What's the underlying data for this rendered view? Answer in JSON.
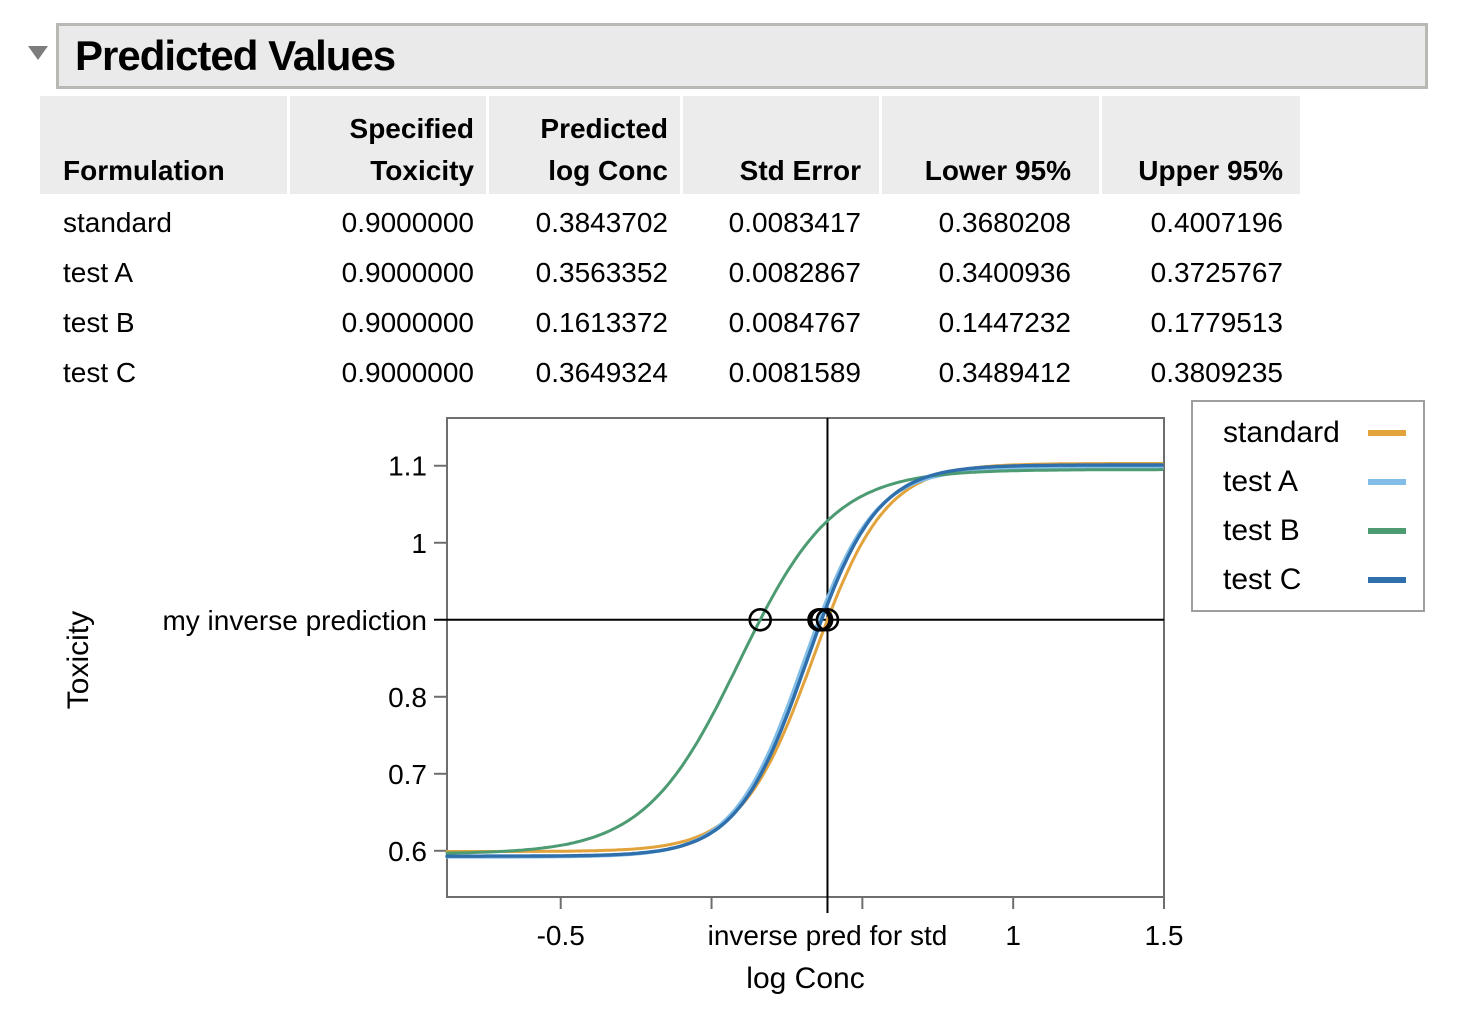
{
  "header": {
    "title": "Predicted Values"
  },
  "table": {
    "columns": [
      {
        "line1": "",
        "line2": "Formulation"
      },
      {
        "line1": "Specified",
        "line2": "Toxicity"
      },
      {
        "line1": "Predicted",
        "line2": "log Conc"
      },
      {
        "line1": "",
        "line2": "Std Error"
      },
      {
        "line1": "",
        "line2": "Lower 95%"
      },
      {
        "line1": "",
        "line2": "Upper 95%"
      }
    ],
    "rows": [
      {
        "cells": [
          "standard",
          "0.9000000",
          "0.3843702",
          "0.0083417",
          "0.3680208",
          "0.4007196"
        ]
      },
      {
        "cells": [
          "test A",
          "0.9000000",
          "0.3563352",
          "0.0082867",
          "0.3400936",
          "0.3725767"
        ]
      },
      {
        "cells": [
          "test B",
          "0.9000000",
          "0.1613372",
          "0.0084767",
          "0.1447232",
          "0.1779513"
        ]
      },
      {
        "cells": [
          "test C",
          "0.9000000",
          "0.3649324",
          "0.0081589",
          "0.3489412",
          "0.3809235"
        ]
      }
    ]
  },
  "chart_data": {
    "type": "line",
    "title": "",
    "xlabel": "log Conc",
    "ylabel": "Toxicity",
    "xlim": [
      -0.877,
      1.5
    ],
    "ylim": [
      0.54,
      1.162
    ],
    "grid": false,
    "legend_position": "outside-top-right",
    "x_ticks": [
      {
        "value": -0.5,
        "label": "-0.5"
      },
      {
        "value": 0,
        "label": ""
      },
      {
        "value": 0.3843702,
        "label": "inverse pred for std",
        "ref": true
      },
      {
        "value": 0.5,
        "label": ""
      },
      {
        "value": 1,
        "label": "1"
      },
      {
        "value": 1.5,
        "label": "1.5"
      }
    ],
    "y_ticks": [
      {
        "value": 0.6,
        "label": "0.6"
      },
      {
        "value": 0.7,
        "label": "0.7"
      },
      {
        "value": 0.8,
        "label": "0.8"
      },
      {
        "value": 0.9,
        "label": "my inverse prediction",
        "ref": true
      },
      {
        "value": 1.0,
        "label": "1"
      },
      {
        "value": 1.1,
        "label": "1.1"
      }
    ],
    "reference_lines": {
      "x": 0.3843702,
      "y": 0.9
    },
    "series": [
      {
        "name": "standard",
        "color": "#E2A33C",
        "curve": "logistic4p",
        "lower_asymptote": 0.599,
        "upper_asymptote": 1.103,
        "slope": 8.4,
        "x_at_toxicity_0_9": 0.3843702,
        "stroke_width": 3.0
      },
      {
        "name": "test A",
        "color": "#82BEE7",
        "curve": "logistic4p",
        "lower_asymptote": 0.592,
        "upper_asymptote": 1.097,
        "slope": 8.7,
        "x_at_toxicity_0_9": 0.3563352,
        "stroke_width": 3.4
      },
      {
        "name": "test B",
        "color": "#4C9B72",
        "curve": "logistic4p",
        "lower_asymptote": 0.596,
        "upper_asymptote": 1.095,
        "slope": 6.4,
        "x_at_toxicity_0_9": 0.1613372,
        "stroke_width": 3.0
      },
      {
        "name": "test C",
        "color": "#2F6FAC",
        "curve": "logistic4p",
        "lower_asymptote": 0.593,
        "upper_asymptote": 1.101,
        "slope": 8.7,
        "x_at_toxicity_0_9": 0.3649324,
        "stroke_width": 3.4
      }
    ],
    "markers": [
      {
        "series": "test B",
        "x": 0.1613372,
        "y": 0.9
      },
      {
        "series": "test A",
        "x": 0.3563352,
        "y": 0.9
      },
      {
        "series": "test C",
        "x": 0.3649324,
        "y": 0.9
      },
      {
        "series": "standard",
        "x": 0.3843702,
        "y": 0.9
      }
    ]
  }
}
